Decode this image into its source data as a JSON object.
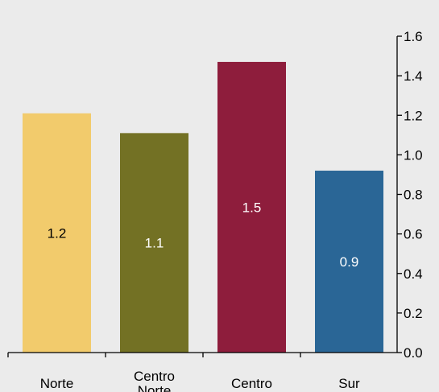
{
  "chart_data": {
    "type": "bar",
    "categories": [
      [
        "Norte"
      ],
      [
        "Centro",
        "Norte"
      ],
      [
        "Centro"
      ],
      [
        "Sur"
      ]
    ],
    "values": [
      1.21,
      1.11,
      1.47,
      0.92
    ],
    "data_labels": [
      "1.2",
      "1.1",
      "1.5",
      "0.9"
    ],
    "bar_colors": [
      "#f2cb6c",
      "#737124",
      "#8e1d3c",
      "#2a6696"
    ],
    "data_label_colors": [
      "#000000",
      "#ffffff",
      "#ffffff",
      "#ffffff"
    ],
    "ylim": [
      0,
      1.6
    ],
    "yticks": [
      "0.0",
      "0.2",
      "0.4",
      "0.6",
      "0.8",
      "1.0",
      "1.2",
      "1.4",
      "1.6"
    ],
    "y_axis_side": "right",
    "grid": false,
    "background": "#ebebeb"
  }
}
